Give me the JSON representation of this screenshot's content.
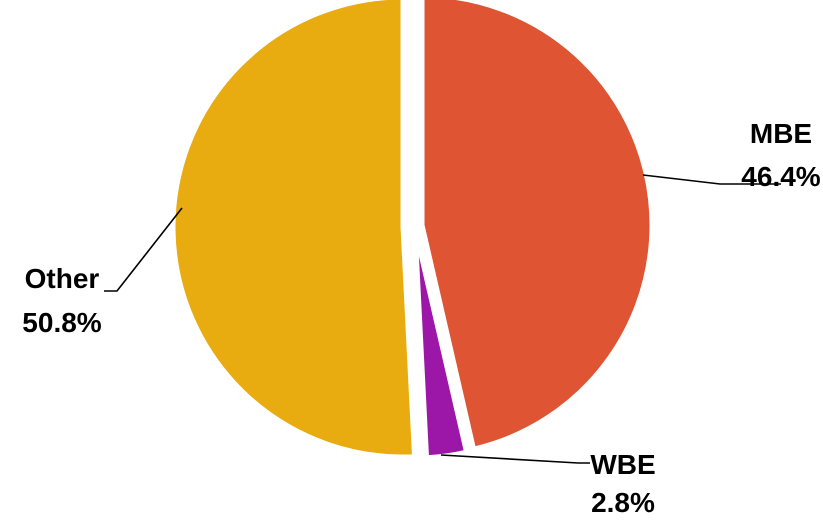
{
  "chart_data": {
    "type": "pie",
    "title": "",
    "slices": [
      {
        "label": "MBE",
        "value": 46.4,
        "value_label": "46.4%",
        "color": "#df5534"
      },
      {
        "label": "WBE",
        "value": 2.8,
        "value_label": "2.8%",
        "color": "#9c17a8"
      },
      {
        "label": "Other",
        "value": 50.8,
        "value_label": "50.8%",
        "color": "#e8ab10"
      }
    ],
    "start_angle_deg": 0,
    "direction": "clockwise",
    "exploded": true,
    "legend": "none",
    "data_labels": "outside with leader lines"
  }
}
